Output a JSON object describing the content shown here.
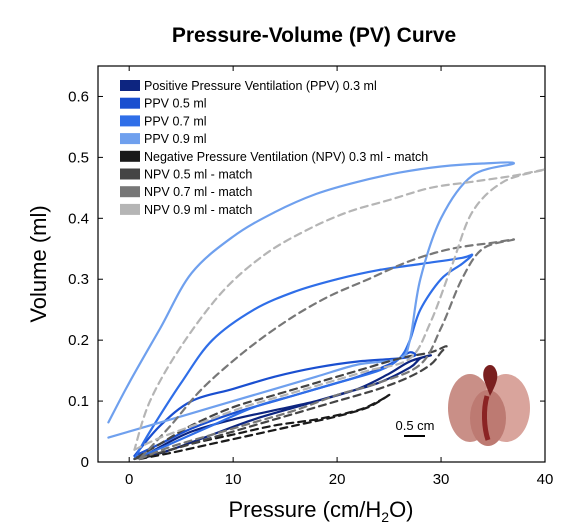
{
  "chart_data": {
    "type": "line",
    "title": "Pressure-Volume (PV) Curve",
    "xlabel_main": "Pressure (cm/H",
    "xlabel_sub": "2",
    "xlabel_end": "O)",
    "ylabel": "Volume (ml)",
    "xlim": [
      -3,
      40
    ],
    "ylim": [
      0,
      0.65
    ],
    "xticks": [
      0,
      10,
      20,
      30,
      40
    ],
    "yticks": [
      0,
      0.1,
      0.2,
      0.3,
      0.4,
      0.5,
      0.6
    ],
    "xtick_labels": [
      "0",
      "10",
      "20",
      "30",
      "40"
    ],
    "ytick_labels": [
      "0",
      "0.1",
      "0.2",
      "0.3",
      "0.4",
      "0.5",
      "0.6"
    ],
    "grid": false,
    "legend_position": "top-left",
    "scale_bar_label": "0.5 cm",
    "series": [
      {
        "name": "Positive Pressure Ventilation (PPV) 0.3 ml",
        "color": "#0d2580",
        "dashed": false,
        "x": [
          1,
          4,
          8,
          12,
          16,
          20,
          24,
          27,
          28,
          29,
          27,
          25,
          22,
          18,
          14,
          10,
          6,
          3,
          1
        ],
        "y": [
          0.005,
          0.02,
          0.045,
          0.07,
          0.09,
          0.11,
          0.13,
          0.155,
          0.17,
          0.175,
          0.165,
          0.145,
          0.12,
          0.1,
          0.085,
          0.07,
          0.05,
          0.025,
          0.005
        ]
      },
      {
        "name": "PPV 0.5 ml",
        "color": "#1a4fd0",
        "dashed": false,
        "x": [
          0.5,
          3,
          6,
          10,
          14,
          18,
          22,
          25,
          26,
          27,
          27.5,
          26,
          22,
          18,
          14,
          10,
          6,
          3,
          0.5
        ],
        "y": [
          0.01,
          0.03,
          0.055,
          0.08,
          0.1,
          0.12,
          0.14,
          0.16,
          0.17,
          0.18,
          0.175,
          0.17,
          0.165,
          0.155,
          0.14,
          0.12,
          0.1,
          0.06,
          0.01
        ]
      },
      {
        "name": "PPV 0.7 ml",
        "color": "#2f6ee8",
        "dashed": false,
        "x": [
          0.5,
          4,
          8,
          12,
          16,
          20,
          24,
          26,
          27,
          28,
          30,
          32,
          33,
          32,
          28,
          24,
          20,
          16,
          12,
          8,
          5,
          2,
          0.5
        ],
        "y": [
          0.005,
          0.03,
          0.06,
          0.09,
          0.11,
          0.13,
          0.15,
          0.17,
          0.2,
          0.25,
          0.3,
          0.325,
          0.34,
          0.335,
          0.325,
          0.315,
          0.3,
          0.28,
          0.25,
          0.2,
          0.13,
          0.05,
          0.005
        ]
      },
      {
        "name": "PPV 0.9 ml",
        "color": "#6fa0ee",
        "dashed": false,
        "x": [
          -2,
          2,
          6,
          10,
          14,
          18,
          22,
          26,
          27,
          28,
          30,
          33,
          37,
          34,
          30,
          26,
          22,
          18,
          14,
          10,
          6,
          3,
          0,
          -2
        ],
        "y": [
          0.04,
          0.06,
          0.08,
          0.1,
          0.12,
          0.14,
          0.16,
          0.17,
          0.2,
          0.3,
          0.4,
          0.47,
          0.49,
          0.49,
          0.485,
          0.475,
          0.46,
          0.44,
          0.41,
          0.37,
          0.31,
          0.22,
          0.13,
          0.065
        ]
      },
      {
        "name": "Negative Pressure Ventilation (NPV) 0.3 ml - match",
        "color": "#1a1a1a",
        "dashed": true,
        "x": [
          1,
          4,
          8,
          12,
          16,
          20,
          23,
          25,
          24,
          22,
          18,
          14,
          10,
          6,
          3,
          1
        ],
        "y": [
          0.005,
          0.015,
          0.03,
          0.045,
          0.06,
          0.075,
          0.09,
          0.11,
          0.1,
          0.085,
          0.07,
          0.06,
          0.045,
          0.03,
          0.015,
          0.005
        ]
      },
      {
        "name": "NPV 0.5 ml - match",
        "color": "#444444",
        "dashed": true,
        "x": [
          0.5,
          4,
          8,
          12,
          16,
          20,
          24,
          27,
          29,
          30,
          30.5,
          29,
          26,
          22,
          18,
          14,
          10,
          6,
          3,
          0.5
        ],
        "y": [
          0.005,
          0.02,
          0.04,
          0.06,
          0.08,
          0.1,
          0.12,
          0.14,
          0.16,
          0.18,
          0.19,
          0.18,
          0.17,
          0.15,
          0.13,
          0.11,
          0.09,
          0.06,
          0.03,
          0.005
        ]
      },
      {
        "name": "NPV 0.7 ml - match",
        "color": "#777777",
        "dashed": true,
        "x": [
          1,
          4,
          8,
          12,
          16,
          20,
          24,
          28,
          30,
          32,
          34,
          37,
          35,
          31,
          27,
          23,
          19,
          15,
          11,
          7,
          4,
          1
        ],
        "y": [
          0.005,
          0.025,
          0.045,
          0.065,
          0.085,
          0.11,
          0.13,
          0.16,
          0.22,
          0.3,
          0.35,
          0.365,
          0.36,
          0.35,
          0.33,
          0.3,
          0.27,
          0.23,
          0.18,
          0.12,
          0.06,
          0.005
        ]
      },
      {
        "name": "NPV 0.9 ml - match",
        "color": "#b5b5b5",
        "dashed": true,
        "x": [
          0.5,
          3,
          7,
          11,
          15,
          19,
          23,
          27,
          29,
          31,
          33,
          36,
          40,
          37,
          33,
          29,
          25,
          21,
          17,
          13,
          9,
          5,
          2,
          0.5
        ],
        "y": [
          0.02,
          0.04,
          0.065,
          0.09,
          0.11,
          0.13,
          0.15,
          0.17,
          0.23,
          0.32,
          0.41,
          0.46,
          0.48,
          0.47,
          0.46,
          0.45,
          0.43,
          0.41,
          0.38,
          0.34,
          0.28,
          0.19,
          0.1,
          0.02
        ]
      }
    ]
  }
}
